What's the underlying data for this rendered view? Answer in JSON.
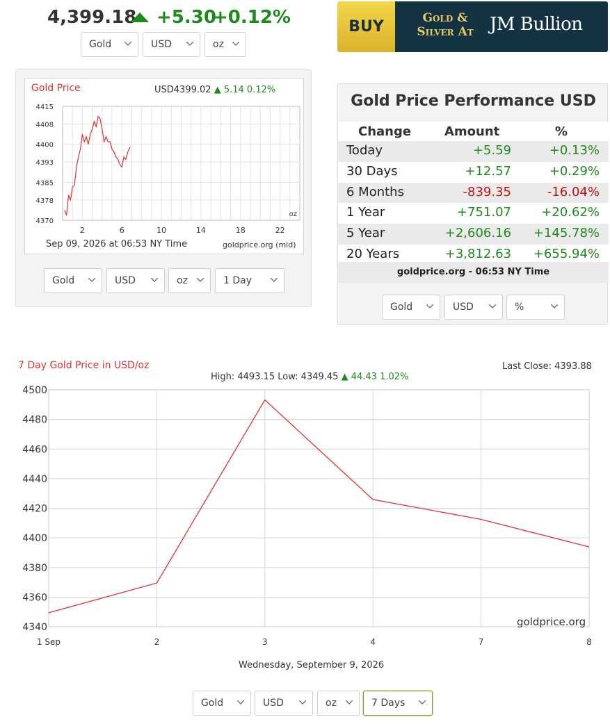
{
  "ticker": {
    "price": "4,399.18",
    "change": "+5.30",
    "change_pct": "+0.12%",
    "direction": "up",
    "selectors": {
      "metal": "Gold",
      "currency": "USD",
      "unit": "oz"
    }
  },
  "ad": {
    "buy": "BUY",
    "line1": "Gold &",
    "line2": "Silver At",
    "brand": "JM Bullion",
    "colors": {
      "buy_bg": "#f0cc3c",
      "right_bg": "#133242",
      "gold_text": "#e8c860"
    }
  },
  "small_chart": {
    "title": "Gold Price",
    "header_price": "USD4399.02",
    "header_change": "5.14",
    "header_pct": "0.12%",
    "unit_label": "oz",
    "footer_date": "Sep 09, 2026 at 06:53 NY Time",
    "footer_source": "goldprice.org (mid)",
    "selectors": {
      "metal": "Gold",
      "currency": "USD",
      "unit": "oz",
      "range": "1 Day"
    }
  },
  "performance": {
    "title": "Gold Price Performance USD",
    "headers": {
      "change": "Change",
      "amount": "Amount",
      "pct": "%"
    },
    "rows": [
      {
        "label": "Today",
        "amount": "+5.59",
        "pct": "+0.13%",
        "sign": "pos"
      },
      {
        "label": "30 Days",
        "amount": "+12.57",
        "pct": "+0.29%",
        "sign": "pos"
      },
      {
        "label": "6 Months",
        "amount": "-839.35",
        "pct": "-16.04%",
        "sign": "neg"
      },
      {
        "label": "1 Year",
        "amount": "+751.07",
        "pct": "+20.62%",
        "sign": "pos"
      },
      {
        "label": "5 Year",
        "amount": "+2,606.16",
        "pct": "+145.78%",
        "sign": "pos"
      },
      {
        "label": "20 Years",
        "amount": "+3,812.63",
        "pct": "+655.94%",
        "sign": "pos"
      }
    ],
    "source": "goldprice.org - 06:53 NY Time",
    "selectors": {
      "metal": "Gold",
      "currency": "USD",
      "unit": "%"
    }
  },
  "big_chart": {
    "title": "7 Day Gold Price in USD/oz",
    "last_close_label": "Last Close: 4393.88",
    "high_low": "High: 4493.15 Low: 4349.45",
    "hl_change": "44.43 1.02%",
    "source": "goldprice.org",
    "footer_date": "Wednesday, September 9, 2026",
    "selectors": {
      "metal": "Gold",
      "currency": "USD",
      "unit": "oz",
      "range": "7 Days"
    }
  },
  "chart_data": [
    {
      "type": "line",
      "title": "Gold Price",
      "x_unit": "hour",
      "x": [
        0.2,
        0.4,
        0.6,
        0.8,
        1.0,
        1.2,
        1.4,
        1.6,
        1.8,
        2.0,
        2.2,
        2.4,
        2.6,
        2.8,
        3.0,
        3.2,
        3.4,
        3.6,
        3.8,
        4.0,
        4.2,
        4.4,
        4.6,
        4.8,
        5.0,
        5.2,
        5.4,
        5.6,
        5.8,
        6.0,
        6.2,
        6.4,
        6.6,
        6.85
      ],
      "y": [
        4374,
        4372,
        4380,
        4378,
        4383,
        4384,
        4391,
        4395,
        4398,
        4404,
        4401,
        4403,
        4400,
        4404,
        4406,
        4409,
        4407,
        4411,
        4410,
        4406,
        4401,
        4403,
        4401,
        4401,
        4398,
        4397,
        4395,
        4394,
        4392,
        4391,
        4395,
        4394,
        4397,
        4399
      ],
      "xticks": [
        2,
        6,
        10,
        14,
        18,
        22
      ],
      "yticks": [
        4370,
        4378,
        4385,
        4393,
        4400,
        4408,
        4415
      ],
      "xlim": [
        0,
        24
      ],
      "ylim": [
        4370,
        4415
      ],
      "grid": true,
      "color": "#e03030"
    },
    {
      "type": "line",
      "title": "7 Day Gold Price in USD/oz",
      "categories": [
        "1 Sep",
        "2",
        "3",
        "4",
        "7",
        "8"
      ],
      "values": [
        4349.45,
        4369.5,
        4493.15,
        4425.9,
        4412.5,
        4393.88
      ],
      "yticks": [
        4340,
        4360,
        4380,
        4400,
        4420,
        4440,
        4460,
        4480,
        4500
      ],
      "ylim": [
        4340,
        4500
      ],
      "grid": true,
      "color": "#e03030"
    }
  ]
}
